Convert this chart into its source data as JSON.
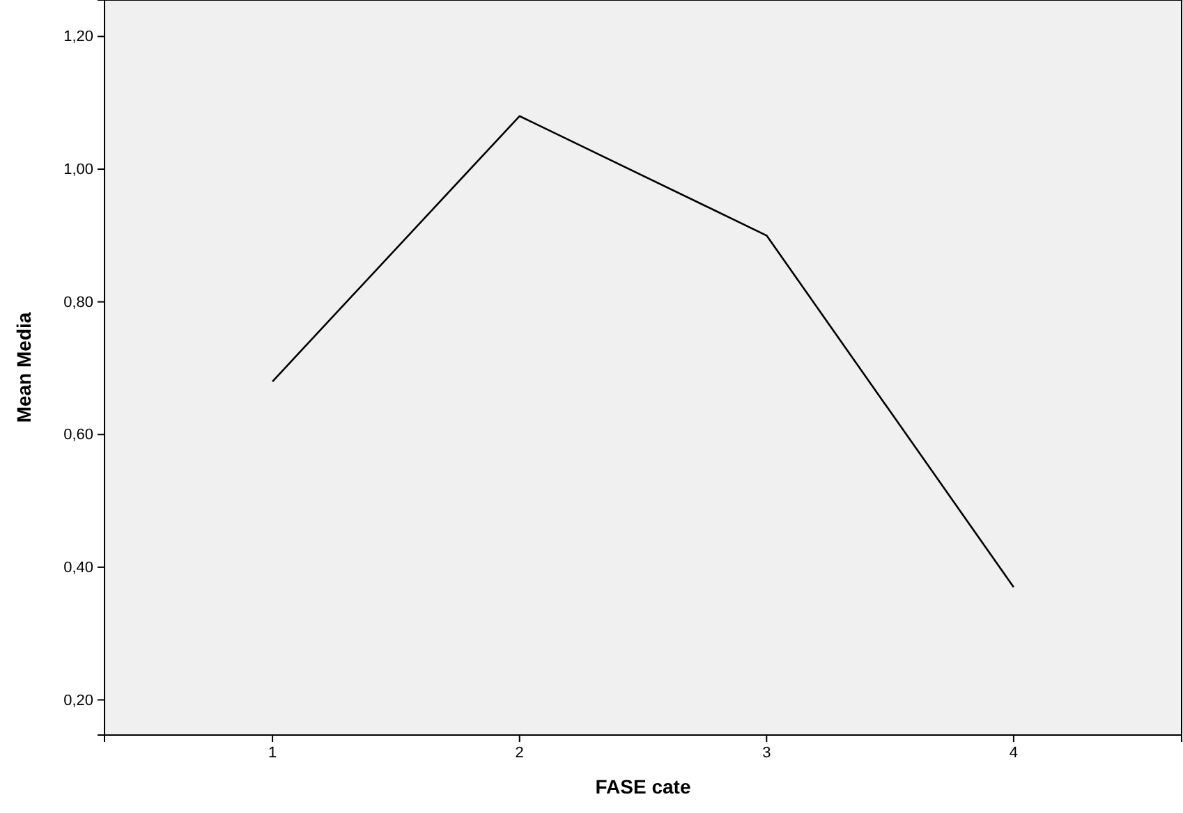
{
  "chart_data": {
    "type": "line",
    "xlabel": "FASE cate",
    "ylabel": "Mean Media",
    "categories": [
      "1",
      "2",
      "3",
      "4"
    ],
    "series": [
      {
        "color": "#000000",
        "values": [
          0.68,
          1.08,
          0.9,
          0.37
        ]
      }
    ],
    "ylim": [
      0.147,
      1.255
    ],
    "yticks": [
      {
        "value": 0.2,
        "label": "0,20"
      },
      {
        "value": 0.4,
        "label": "0,40"
      },
      {
        "value": 0.6,
        "label": "0,60"
      },
      {
        "value": 0.8,
        "label": "0,80"
      },
      {
        "value": 1.0,
        "label": "1,00"
      },
      {
        "value": 1.2,
        "label": "1,20"
      }
    ],
    "marker": "none",
    "line_style": "solid"
  }
}
